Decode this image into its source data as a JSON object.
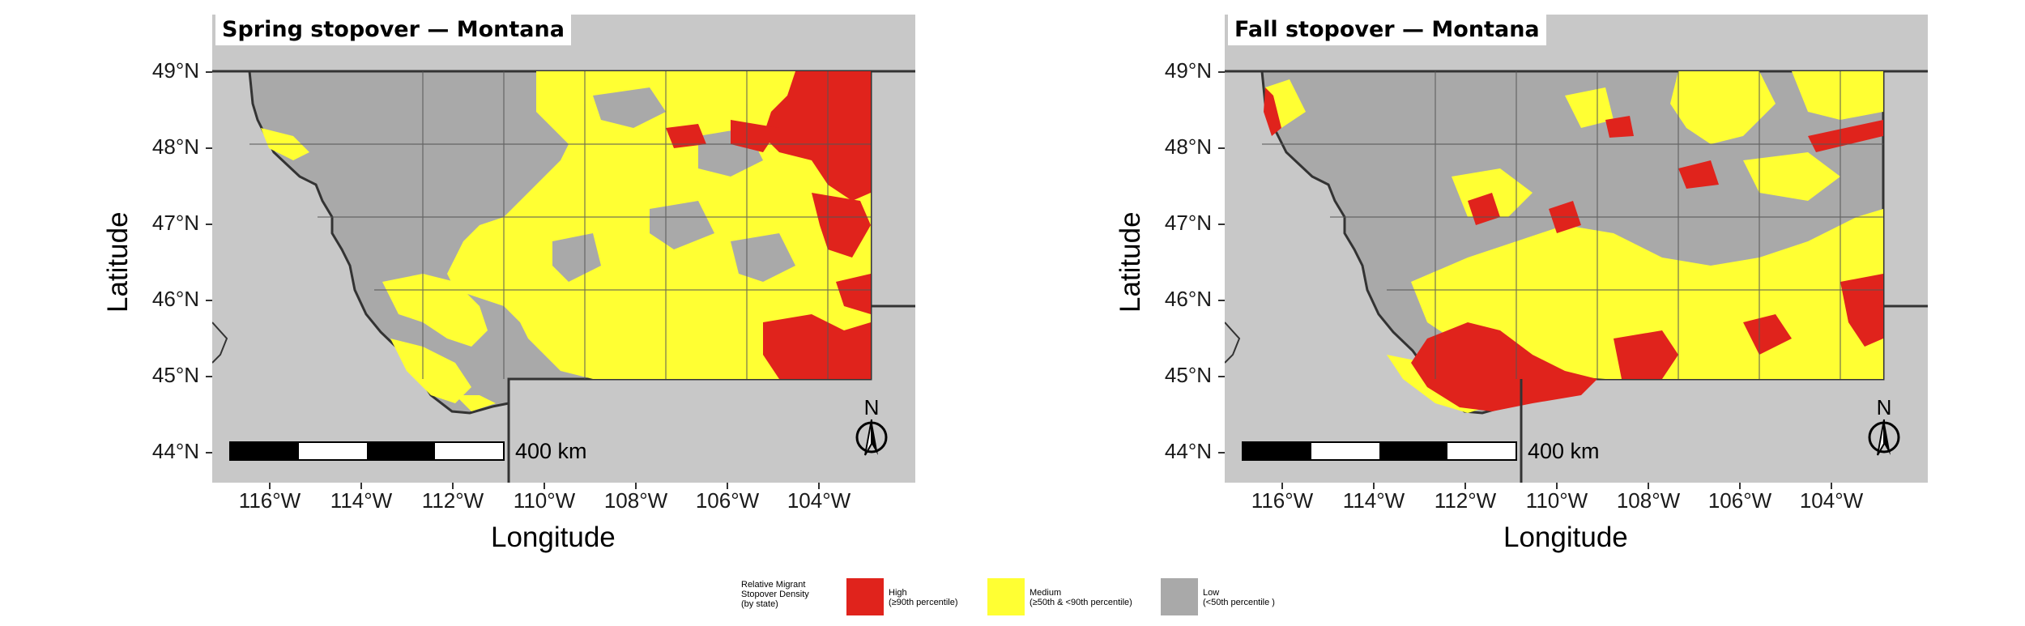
{
  "colors": {
    "high": "#e0231c",
    "medium": "#ffff33",
    "low": "#a9a9a9",
    "background": "#c8c8c8",
    "border": "#333333"
  },
  "panels": [
    {
      "title": "Spring stopover — Montana",
      "x_label": "Longitude",
      "y_label": "Latitude",
      "scale_label": "400 km",
      "north_label": "N",
      "x_ticks": [
        "116°W",
        "114°W",
        "112°W",
        "110°W",
        "108°W",
        "106°W",
        "104°W"
      ],
      "y_ticks": [
        "49°N",
        "48°N",
        "47°N",
        "46°N",
        "45°N",
        "44°N"
      ]
    },
    {
      "title": "Fall stopover — Montana",
      "x_label": "Longitude",
      "y_label": "Latitude",
      "scale_label": "400 km",
      "north_label": "N",
      "x_ticks": [
        "116°W",
        "114°W",
        "112°W",
        "110°W",
        "108°W",
        "106°W",
        "104°W"
      ],
      "y_ticks": [
        "49°N",
        "48°N",
        "47°N",
        "46°N",
        "45°N",
        "44°N"
      ]
    }
  ],
  "legend": {
    "title": [
      "Relative Migrant",
      "Stopover Density",
      "(by state)"
    ],
    "items": [
      {
        "label": "High",
        "sub": "(≥90th percentile)"
      },
      {
        "label": "Medium",
        "sub": "(≥50th & <90th percentile)"
      },
      {
        "label": "Low",
        "sub": "(<50th percentile )"
      }
    ]
  }
}
